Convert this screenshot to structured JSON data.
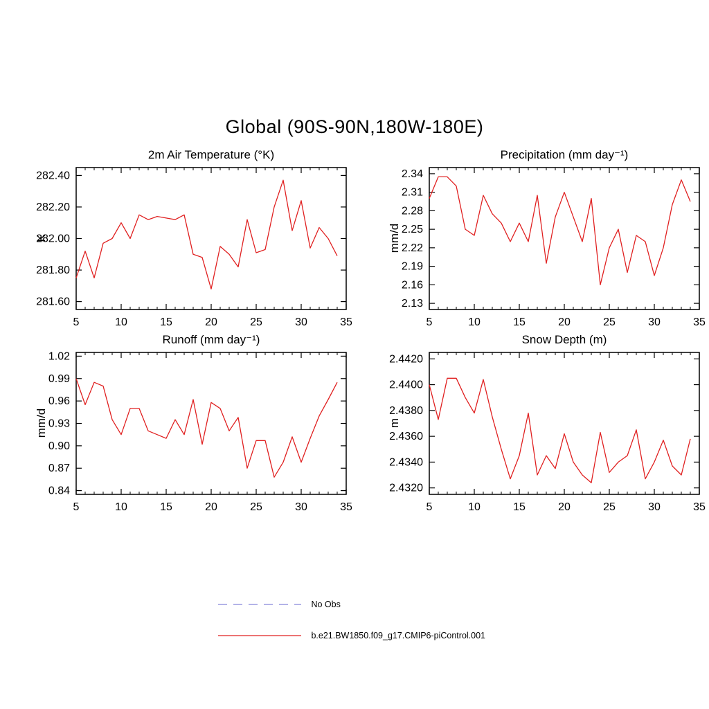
{
  "page_title": "Global (90S-90N,180W-180E)",
  "legend": {
    "items": [
      {
        "label": "No Obs",
        "color": "#9a9ae0",
        "style": "dashed"
      },
      {
        "label": "b.e21.BW1850.f09_g17.CMIP6-piControl.001",
        "color": "#e02020",
        "style": "solid"
      }
    ]
  },
  "chart_data": [
    {
      "type": "line",
      "title": "2m Air Temperature (°K)",
      "ylabel": "K",
      "xlim": [
        5,
        35
      ],
      "ylim": [
        281.55,
        282.45
      ],
      "x_ticks": [
        5,
        10,
        15,
        20,
        25,
        30,
        35
      ],
      "y_tick_labels": [
        "281.60",
        "281.80",
        "282.00",
        "282.20",
        "282.40"
      ],
      "series": [
        {
          "name": "b.e21.BW1850.f09_g17.CMIP6-piControl.001",
          "color": "#e02020",
          "x": [
            5,
            6,
            7,
            8,
            9,
            10,
            11,
            12,
            13,
            14,
            15,
            16,
            17,
            18,
            19,
            20,
            21,
            22,
            23,
            24,
            25,
            26,
            27,
            28,
            29,
            30,
            31,
            32,
            33,
            34
          ],
          "values": [
            281.75,
            281.92,
            281.75,
            281.97,
            282.0,
            282.1,
            282.0,
            282.15,
            282.12,
            282.14,
            282.13,
            282.12,
            282.15,
            281.9,
            281.88,
            281.68,
            281.95,
            281.9,
            281.82,
            282.12,
            281.91,
            281.93,
            282.2,
            282.37,
            282.05,
            282.24,
            281.94,
            282.07,
            282.0,
            281.89
          ]
        }
      ]
    },
    {
      "type": "line",
      "title": "Precipitation (mm day⁻¹)",
      "ylabel": "mm/d",
      "xlim": [
        5,
        35
      ],
      "ylim": [
        2.12,
        2.35
      ],
      "x_ticks": [
        5,
        10,
        15,
        20,
        25,
        30,
        35
      ],
      "y_tick_labels": [
        "2.13",
        "2.16",
        "2.19",
        "2.22",
        "2.25",
        "2.28",
        "2.31",
        "2.34"
      ],
      "series": [
        {
          "name": "b.e21.BW1850.f09_g17.CMIP6-piControl.001",
          "color": "#e02020",
          "x": [
            5,
            6,
            7,
            8,
            9,
            10,
            11,
            12,
            13,
            14,
            15,
            16,
            17,
            18,
            19,
            20,
            21,
            22,
            23,
            24,
            25,
            26,
            27,
            28,
            29,
            30,
            31,
            32,
            33,
            34
          ],
          "values": [
            2.3,
            2.335,
            2.335,
            2.32,
            2.25,
            2.24,
            2.305,
            2.275,
            2.26,
            2.23,
            2.26,
            2.23,
            2.305,
            2.195,
            2.27,
            2.31,
            2.27,
            2.23,
            2.3,
            2.16,
            2.22,
            2.25,
            2.18,
            2.24,
            2.23,
            2.175,
            2.22,
            2.29,
            2.33,
            2.295
          ]
        }
      ]
    },
    {
      "type": "line",
      "title": "Runoff (mm day⁻¹)",
      "ylabel": "mm/d",
      "xlim": [
        5,
        35
      ],
      "ylim": [
        0.835,
        1.025
      ],
      "x_ticks": [
        5,
        10,
        15,
        20,
        25,
        30,
        35
      ],
      "y_tick_labels": [
        "0.84",
        "0.87",
        "0.90",
        "0.93",
        "0.96",
        "0.99",
        "1.02"
      ],
      "series": [
        {
          "name": "b.e21.BW1850.f09_g17.CMIP6-piControl.001",
          "color": "#e02020",
          "x": [
            5,
            6,
            7,
            8,
            9,
            10,
            11,
            12,
            13,
            14,
            15,
            16,
            17,
            18,
            19,
            20,
            21,
            22,
            23,
            24,
            25,
            26,
            27,
            28,
            29,
            30,
            31,
            32,
            33,
            34
          ],
          "values": [
            0.99,
            0.955,
            0.985,
            0.98,
            0.935,
            0.915,
            0.95,
            0.95,
            0.92,
            0.915,
            0.91,
            0.935,
            0.915,
            0.962,
            0.902,
            0.958,
            0.95,
            0.92,
            0.938,
            0.87,
            0.907,
            0.907,
            0.858,
            0.878,
            0.912,
            0.878,
            0.91,
            0.94,
            0.962,
            0.985
          ]
        }
      ]
    },
    {
      "type": "line",
      "title": "Snow Depth (m)",
      "ylabel": "m",
      "xlim": [
        5,
        35
      ],
      "ylim": [
        2.4315,
        2.4425
      ],
      "x_ticks": [
        5,
        10,
        15,
        20,
        25,
        30,
        35
      ],
      "y_tick_labels": [
        "2.4320",
        "2.4340",
        "2.4360",
        "2.4380",
        "2.4400",
        "2.4420"
      ],
      "series": [
        {
          "name": "b.e21.BW1850.f09_g17.CMIP6-piControl.001",
          "color": "#e02020",
          "x": [
            5,
            6,
            7,
            8,
            9,
            10,
            11,
            12,
            13,
            14,
            15,
            16,
            17,
            18,
            19,
            20,
            21,
            22,
            23,
            24,
            25,
            26,
            27,
            28,
            29,
            30,
            31,
            32,
            33,
            34
          ],
          "values": [
            2.44,
            2.4373,
            2.4405,
            2.4405,
            2.439,
            2.4378,
            2.4404,
            2.4375,
            2.435,
            2.4327,
            2.4345,
            2.4378,
            2.433,
            2.4345,
            2.4335,
            2.4362,
            2.434,
            2.433,
            2.4324,
            2.4363,
            2.4332,
            2.434,
            2.4345,
            2.4365,
            2.4327,
            2.434,
            2.4357,
            2.4337,
            2.433,
            2.4358
          ]
        }
      ]
    }
  ]
}
